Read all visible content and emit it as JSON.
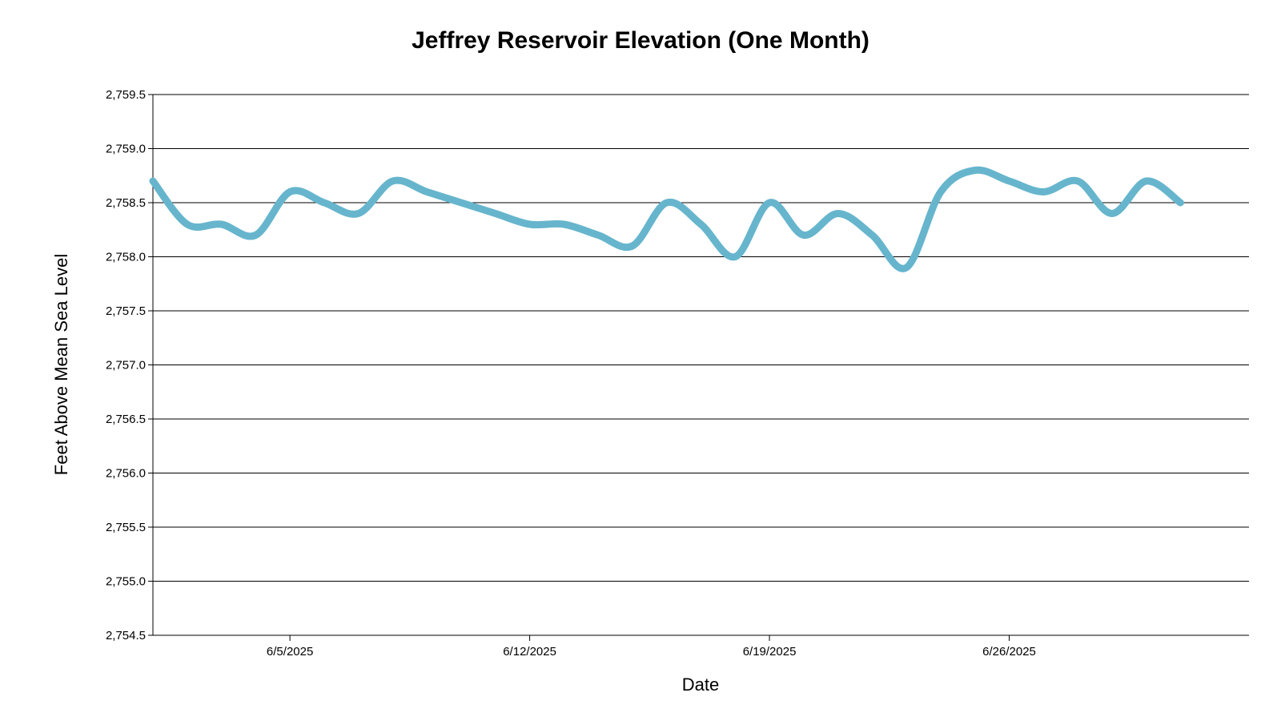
{
  "chart_data": {
    "type": "line",
    "title": "Jeffrey Reservoir Elevation (One Month)",
    "xlabel": "Date",
    "ylabel": "Feet Above Mean Sea Level",
    "ylim": [
      2754.5,
      2759.5
    ],
    "y_ticks": [
      "2,754.5",
      "2,755.0",
      "2,755.5",
      "2,756.0",
      "2,756.5",
      "2,757.0",
      "2,757.5",
      "2,758.0",
      "2,758.5",
      "2,759.0",
      "2,759.5"
    ],
    "x_ticks": [
      {
        "date": "2025-06-05",
        "label": "6/5/2025"
      },
      {
        "date": "2025-06-12",
        "label": "6/12/2025"
      },
      {
        "date": "2025-06-19",
        "label": "6/19/2025"
      },
      {
        "date": "2025-06-26",
        "label": "6/26/2025"
      }
    ],
    "xlim": [
      "2025-06-01",
      "2025-07-03"
    ],
    "grid": true,
    "line_color": "#66b5cd",
    "series": [
      {
        "x": [
          "2025-06-01",
          "2025-06-02",
          "2025-06-03",
          "2025-06-04",
          "2025-06-05",
          "2025-06-06",
          "2025-06-07",
          "2025-06-08",
          "2025-06-09",
          "2025-06-10",
          "2025-06-11",
          "2025-06-12",
          "2025-06-13",
          "2025-06-14",
          "2025-06-15",
          "2025-06-16",
          "2025-06-17",
          "2025-06-18",
          "2025-06-19",
          "2025-06-20",
          "2025-06-21",
          "2025-06-22",
          "2025-06-23",
          "2025-06-24",
          "2025-06-25",
          "2025-06-26",
          "2025-06-27",
          "2025-06-28",
          "2025-06-29",
          "2025-06-30",
          "2025-07-01",
          "2025-07-02"
        ],
        "values": [
          2758.7,
          2758.3,
          2758.3,
          2758.2,
          2758.6,
          2758.5,
          2758.4,
          2758.7,
          2758.6,
          2758.5,
          2758.4,
          2758.3,
          2758.3,
          2758.2,
          2758.1,
          2758.5,
          2758.3,
          2758.0,
          2758.5,
          2758.2,
          2758.4,
          2758.2,
          2757.9,
          2758.6,
          2758.8,
          2758.7,
          2758.6,
          2758.7,
          2758.4,
          2758.7,
          2758.5,
          null
        ]
      }
    ]
  }
}
